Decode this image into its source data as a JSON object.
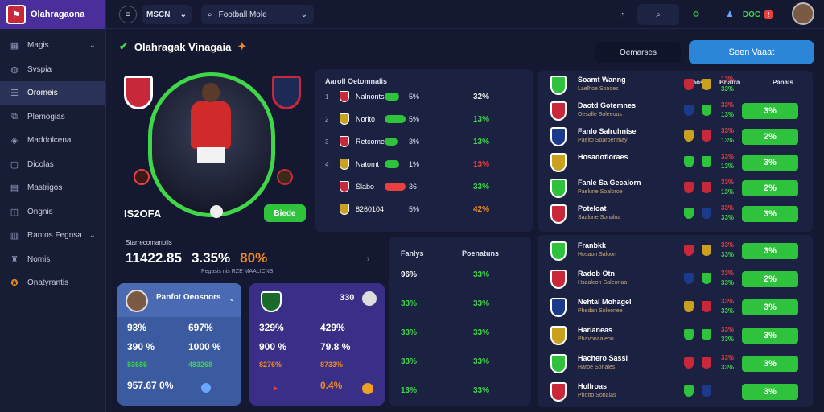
{
  "app": {
    "name": "Olahragaona"
  },
  "topbar": {
    "league": "MSCN",
    "search_placeholder": "Football Mole",
    "coin": "DOC"
  },
  "sidebar": {
    "items": [
      {
        "label": "Magis",
        "icon": "grid-icon"
      },
      {
        "label": "Svspia",
        "icon": "globe-icon"
      },
      {
        "label": "Oromeis",
        "icon": "list-icon"
      },
      {
        "label": "Plemogias",
        "icon": "chart-icon"
      },
      {
        "label": "Maddolcena",
        "icon": "ball-icon"
      },
      {
        "label": "Dicolas",
        "icon": "folder-icon"
      },
      {
        "label": "Mastrigos",
        "icon": "doc-icon"
      },
      {
        "label": "Ongnis",
        "icon": "cube-icon"
      },
      {
        "label": "Rantos Fegnsa",
        "icon": "table-icon"
      },
      {
        "label": "Nomis",
        "icon": "trophy-icon"
      },
      {
        "label": "Onatyrantis",
        "icon": "star-icon"
      }
    ]
  },
  "page": {
    "title": "Olahragak Vinagaia",
    "btn_secondary": "Oemarses",
    "btn_primary": "Seen Vaaat"
  },
  "hero": {
    "score": "IS2OFA",
    "action": "Biede"
  },
  "leaders": {
    "header": "Aaroll Oetomnalis",
    "rows": [
      {
        "rank": "1",
        "name": "Nalnonts",
        "pct": "5%",
        "val": "32%",
        "color": "#e6e6e6",
        "bar": 0.7
      },
      {
        "rank": "2",
        "name": "Norlto",
        "pct": "5%",
        "val": "13%",
        "color": "#3fd64a",
        "bar": 1.0
      },
      {
        "rank": "3",
        "name": "Retcomet",
        "pct": "3%",
        "val": "13%",
        "color": "#3fd64a",
        "bar": 0.6
      },
      {
        "rank": "4",
        "name": "Natomt",
        "pct": "1%",
        "val": "13%",
        "color": "#e84040",
        "bar": 0.7
      },
      {
        "rank": "",
        "name": "Slabo",
        "pct": "36",
        "val": "33%",
        "color": "#3fd64a",
        "bar": 1.0
      },
      {
        "rank": "",
        "name": "8260104",
        "pct": "5%",
        "val": "42%",
        "color": "#f08a24",
        "bar": 0
      }
    ]
  },
  "stats": {
    "label": "Starrecomanolis",
    "big1": "11422.85",
    "big2": "3.35%",
    "big3": "80%",
    "sub": "Pegasis nis RZE MAALICNS"
  },
  "card1": {
    "title": "Panfot Oeosnors",
    "rows": [
      [
        "93%",
        "697%"
      ],
      [
        "390 %",
        "1000 %"
      ],
      [
        "83686",
        "483268"
      ],
      [
        "957.67 0%",
        ""
      ]
    ]
  },
  "card2": {
    "title": "330",
    "rows": [
      [
        "329%",
        "429%"
      ],
      [
        "900 %",
        "79.8 %"
      ],
      [
        "8276%",
        "8733%"
      ],
      [
        "",
        "0.4%"
      ]
    ]
  },
  "mid": {
    "h1": "Fanlys",
    "h2": "Poenatuns",
    "rows": [
      [
        "96%",
        "33%"
      ],
      [
        "33%",
        "33%"
      ],
      [
        "33%",
        "33%"
      ],
      [
        "33%",
        "33%"
      ],
      [
        "13%",
        "33%"
      ]
    ]
  },
  "matches_top": {
    "headers": [
      "Baoos",
      "Bnatra",
      "Panals"
    ],
    "rows": [
      {
        "name": "Soamt Wanng",
        "sub": "Laelhoe Sonoes",
        "a": "13%",
        "b": "33%",
        "pct": "",
        "col": "#f08a24"
      },
      {
        "name": "Daotd Gotemnes",
        "sub": "Oesalle Soleeous",
        "a": "33%",
        "b": "13%",
        "pct": "3%",
        "col": "#3fd64a"
      },
      {
        "name": "Fanlo Salruhnise",
        "sub": "Paelto Soaroenmay",
        "a": "33%",
        "b": "13%",
        "pct": "2%",
        "col": "#3fd64a"
      },
      {
        "name": "Hosadofloraes",
        "sub": "",
        "a": "33%",
        "b": "13%",
        "pct": "3%",
        "col": "#3fd64a"
      },
      {
        "name": "Fanle Sa Gecalorn",
        "sub": "Paelune Soaloroe",
        "a": "33%",
        "b": "13%",
        "pct": "2%",
        "col": "#3fd64a"
      },
      {
        "name": "Poteloat",
        "sub": "Saalune Sonaloa",
        "a": "33%",
        "b": "33%",
        "pct": "3%",
        "col": "#3fd64a"
      }
    ]
  },
  "matches_bottom": {
    "rows": [
      {
        "name": "Franbkk",
        "sub": "Hosaon Saloon",
        "a": "33%",
        "b": "33%",
        "pct": "3%"
      },
      {
        "name": "Radob Otn",
        "sub": "Hsaaleon Saleonaa",
        "a": "33%",
        "b": "33%",
        "pct": "2%"
      },
      {
        "name": "Nehtal Mohagel",
        "sub": "Phedan Soleonee",
        "a": "33%",
        "b": "33%",
        "pct": "3%"
      },
      {
        "name": "Harlaneas",
        "sub": "Phavonaaleon",
        "a": "33%",
        "b": "33%",
        "pct": "3%"
      },
      {
        "name": "Hachero Sassl",
        "sub": "Haroe Sonales",
        "a": "33%",
        "b": "33%",
        "pct": "3%"
      },
      {
        "name": "Hollroas",
        "sub": "Photto Sonalas",
        "a": "",
        "b": "",
        "pct": "3%"
      }
    ]
  }
}
